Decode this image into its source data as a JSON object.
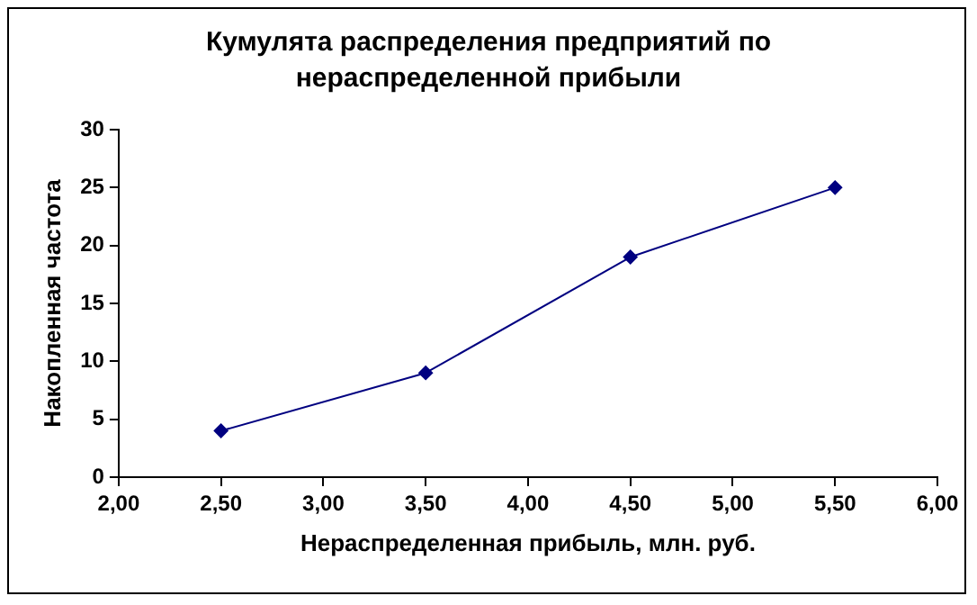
{
  "chart_data": {
    "type": "line",
    "title": "Кумулята распределения предприятий по нераспределенной прибыли",
    "xlabel": "Нераспределенная прибыль, млн. руб.",
    "ylabel": "Накопленная частота",
    "x": [
      2.5,
      3.5,
      4.5,
      5.5
    ],
    "series": [
      {
        "color": "#000080",
        "values": [
          4,
          9,
          19,
          25
        ]
      }
    ],
    "xlim": [
      2,
      6
    ],
    "xticks": [
      {
        "value": 2,
        "label": "2,00"
      },
      {
        "value": 2.5,
        "label": "2,50"
      },
      {
        "value": 3,
        "label": "3,00"
      },
      {
        "value": 3.5,
        "label": "3,50"
      },
      {
        "value": 4,
        "label": "4,00"
      },
      {
        "value": 4.5,
        "label": "4,50"
      },
      {
        "value": 5,
        "label": "5,00"
      },
      {
        "value": 5.5,
        "label": "5,50"
      },
      {
        "value": 6,
        "label": "6,00"
      }
    ],
    "ylim": [
      0,
      30
    ],
    "yticks": [
      0,
      5,
      10,
      15,
      20,
      25,
      30
    ],
    "grid": false,
    "legend": false,
    "marker": "diamond",
    "line_style": "solid"
  }
}
